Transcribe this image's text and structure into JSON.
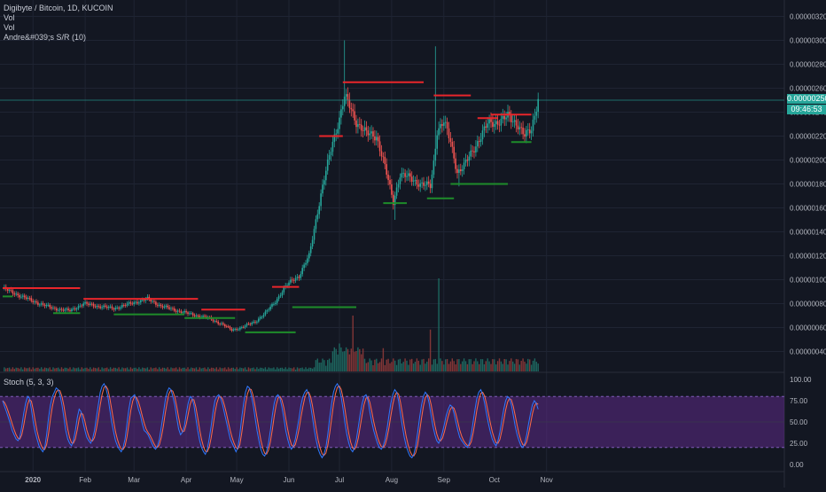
{
  "header": {
    "symbol_title": "Digibyte / Bitcoin, 1D, KUCOIN",
    "indicators": [
      "Vol",
      "Vol",
      "Andre&#039;s S/R (10)"
    ]
  },
  "stoch_pane": {
    "title": "Stoch (5, 3, 3)"
  },
  "last_price": {
    "value": "0.00000250",
    "countdown": "09:46:53"
  },
  "colors": {
    "background": "#131722",
    "grid": "#1f2433",
    "up": "#26a69a",
    "down": "#ef5350",
    "resistance": "#e8262b",
    "support": "#1e8c2a",
    "stoch_band": "#5c2a86",
    "stoch_k": "#2f78ff",
    "stoch_d": "#ff6b4a"
  },
  "chart_data": [
    {
      "type": "candlestick",
      "title": "Digibyte / Bitcoin, 1D, KUCOIN",
      "x_tick_labels": [
        "2020",
        "Feb",
        "Mar",
        "Apr",
        "May",
        "Jun",
        "Jul",
        "Aug",
        "Sep",
        "Oct",
        "Nov"
      ],
      "y_tick_labels": [
        "0.00000320",
        "0.00000300",
        "0.00000280",
        "0.00000260",
        "0.00000240",
        "0.00000220",
        "0.00000200",
        "0.00000180",
        "0.00000160",
        "0.00000140",
        "0.00000120",
        "0.00000100",
        "0.00000080",
        "0.00000060",
        "0.00000040"
      ],
      "ylim": [
        3e-07,
        3.3e-06
      ],
      "close_anchors": [
        [
          0,
          9.3e-07
        ],
        [
          8,
          8.8e-07
        ],
        [
          18,
          8.2e-07
        ],
        [
          30,
          7.6e-07
        ],
        [
          40,
          7.4e-07
        ],
        [
          48,
          8e-07
        ],
        [
          56,
          7.8e-07
        ],
        [
          66,
          7.6e-07
        ],
        [
          76,
          8e-07
        ],
        [
          86,
          8.4e-07
        ],
        [
          94,
          7.8e-07
        ],
        [
          104,
          7.4e-07
        ],
        [
          112,
          7.1e-07
        ],
        [
          122,
          6.8e-07
        ],
        [
          130,
          6.3e-07
        ],
        [
          136,
          5.8e-07
        ],
        [
          142,
          6e-07
        ],
        [
          150,
          6.5e-07
        ],
        [
          156,
          7.2e-07
        ],
        [
          162,
          8.2e-07
        ],
        [
          168,
          9.4e-07
        ],
        [
          172,
          1e-06
        ],
        [
          176,
          1.03e-06
        ],
        [
          182,
          1.2e-06
        ],
        [
          186,
          1.5e-06
        ],
        [
          190,
          1.78e-06
        ],
        [
          196,
          2.15e-06
        ],
        [
          200,
          2.35e-06
        ],
        [
          203,
          2.53e-06
        ],
        [
          206,
          2.45e-06
        ],
        [
          210,
          2.32e-06
        ],
        [
          216,
          2.22e-06
        ],
        [
          222,
          2.2e-06
        ],
        [
          226,
          2e-06
        ],
        [
          232,
          1.65e-06
        ],
        [
          236,
          1.88e-06
        ],
        [
          242,
          1.85e-06
        ],
        [
          248,
          1.8e-06
        ],
        [
          254,
          1.78e-06
        ],
        [
          256,
          1.98e-06
        ],
        [
          258,
          2.25e-06
        ],
        [
          262,
          2.32e-06
        ],
        [
          266,
          2.15e-06
        ],
        [
          270,
          1.9e-06
        ],
        [
          274,
          1.95e-06
        ],
        [
          278,
          2.05e-06
        ],
        [
          282,
          2.15e-06
        ],
        [
          288,
          2.3e-06
        ],
        [
          294,
          2.32e-06
        ],
        [
          300,
          2.36e-06
        ],
        [
          306,
          2.3e-06
        ],
        [
          310,
          2.2e-06
        ],
        [
          314,
          2.25e-06
        ],
        [
          318,
          2.52e-06
        ]
      ],
      "spikes": [
        {
          "day": 203,
          "high": 3e-06
        },
        {
          "day": 233,
          "low": 1.5e-06
        },
        {
          "day": 257,
          "high": 2.95e-06
        },
        {
          "day": 271,
          "low": 1.78e-06
        }
      ],
      "resistance_lines": [
        {
          "start": 0,
          "end": 46,
          "price": 9.3e-07
        },
        {
          "start": 48,
          "end": 116,
          "price": 8.4e-07
        },
        {
          "start": 118,
          "end": 144,
          "price": 7.5e-07
        },
        {
          "start": 160,
          "end": 176,
          "price": 9.4e-07
        },
        {
          "start": 188,
          "end": 202,
          "price": 2.2e-06
        },
        {
          "start": 202,
          "end": 250,
          "price": 2.65e-06
        },
        {
          "start": 256,
          "end": 278,
          "price": 2.54e-06
        },
        {
          "start": 282,
          "end": 294,
          "price": 2.35e-06
        },
        {
          "start": 290,
          "end": 314,
          "price": 2.38e-06
        }
      ],
      "support_lines": [
        {
          "start": 0,
          "end": 6,
          "price": 8.6e-07
        },
        {
          "start": 30,
          "end": 46,
          "price": 7.2e-07
        },
        {
          "start": 66,
          "end": 108,
          "price": 7.1e-07
        },
        {
          "start": 108,
          "end": 138,
          "price": 6.8e-07
        },
        {
          "start": 144,
          "end": 174,
          "price": 5.6e-07
        },
        {
          "start": 172,
          "end": 210,
          "price": 7.7e-07
        },
        {
          "start": 226,
          "end": 240,
          "price": 1.64e-06
        },
        {
          "start": 252,
          "end": 268,
          "price": 1.68e-06
        },
        {
          "start": 266,
          "end": 300,
          "price": 1.8e-06
        },
        {
          "start": 302,
          "end": 314,
          "price": 2.15e-06
        }
      ],
      "hline_price": 2.5e-06
    },
    {
      "type": "bar",
      "title": "Vol",
      "volume_spikes": [
        {
          "day": 208,
          "value": 0.6
        },
        {
          "day": 259,
          "value": 1.0
        },
        {
          "day": 254,
          "value": 0.45
        },
        {
          "day": 200,
          "value": 0.3
        },
        {
          "day": 226,
          "value": 0.25
        }
      ]
    },
    {
      "type": "line",
      "title": "Stoch (5, 3, 3)",
      "y_tick_labels": [
        "100.00",
        "75.00",
        "50.00",
        "25.00",
        "0.00"
      ],
      "ylim": [
        -5,
        105
      ],
      "overbought": 80,
      "oversold": 20,
      "series": [
        {
          "values": [
            75,
            68,
            62,
            55,
            48,
            40,
            35,
            30,
            28,
            32,
            45,
            60,
            72,
            80,
            78,
            65,
            50,
            38,
            30,
            22,
            18,
            15,
            20,
            35,
            55,
            70,
            80,
            85,
            90,
            88,
            82,
            70,
            55,
            40,
            30,
            25,
            22,
            28,
            40,
            55,
            65,
            62,
            50,
            40,
            32,
            28,
            25,
            30,
            40,
            55,
            70,
            85,
            92,
            95,
            90,
            80,
            65,
            50,
            38,
            28,
            22,
            18,
            15,
            20,
            30,
            48,
            65,
            78,
            80,
            82,
            75,
            65,
            58,
            48,
            40,
            38,
            35,
            30,
            25,
            20,
            18,
            22,
            30,
            45,
            60,
            75,
            85,
            90,
            88,
            80,
            70,
            55,
            42,
            35,
            38,
            45,
            60,
            72,
            80,
            78,
            70,
            55,
            40,
            28,
            20,
            15,
            12,
            18,
            30,
            45,
            62,
            75,
            80,
            82,
            78,
            70,
            60,
            50,
            40,
            30,
            25,
            20,
            15,
            20,
            35,
            55,
            72,
            85,
            92,
            90,
            82,
            70,
            55,
            40,
            28,
            18,
            12,
            10,
            15,
            25,
            40,
            58,
            72,
            80,
            82,
            78,
            68,
            55,
            40,
            30,
            22,
            18,
            22,
            30,
            42,
            55,
            70,
            80,
            85,
            88,
            82,
            70,
            55,
            40,
            28,
            18,
            12,
            8,
            12,
            20,
            35,
            55,
            72,
            85,
            92,
            95,
            90,
            80,
            65,
            48,
            35,
            25,
            18,
            15,
            20,
            30,
            45,
            60,
            72,
            80,
            82,
            75,
            62,
            50,
            40,
            32,
            25,
            20,
            18,
            22,
            30,
            42,
            58,
            72,
            82,
            88,
            85,
            75,
            60,
            45,
            32,
            22,
            15,
            10,
            8,
            12,
            22,
            38,
            55,
            70,
            80,
            85,
            82,
            72,
            58,
            45,
            35,
            28,
            25,
            30,
            38,
            48,
            58,
            65,
            70,
            68,
            60,
            50,
            40,
            32,
            28,
            25,
            22,
            20,
            25,
            35,
            50,
            65,
            78,
            85,
            88,
            82,
            72,
            60,
            48,
            38,
            30,
            25,
            22,
            28,
            38,
            52,
            65,
            75,
            80,
            78,
            70,
            58,
            45,
            35,
            28,
            22,
            20,
            25,
            35,
            48,
            60,
            70,
            75,
            72,
            65
          ]
        }
      ]
    }
  ]
}
